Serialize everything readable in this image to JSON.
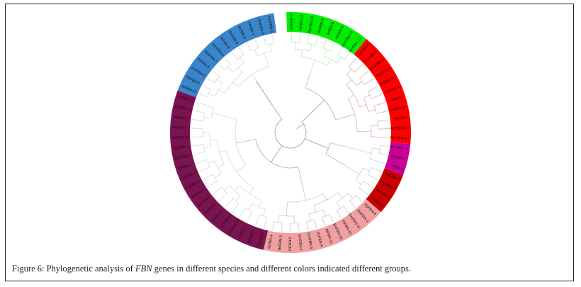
{
  "figure": {
    "label": "Figure 6:",
    "caption_pre": " Phylogenetic analysis of ",
    "caption_gene": "FBN",
    "caption_post": " genes in different species and different colors indicated different groups."
  },
  "tree": {
    "type": "circular-phylogenetic-tree",
    "groups": [
      {
        "name": "green",
        "color": "#00ee00",
        "labels": [
          "ZmFBN-4",
          "AtFBN-12",
          "PpFBN-10",
          "BnFBN-8",
          "AtFBN-8",
          "PtFBN-8",
          "GmFBN-14",
          "GmFBN-12"
        ]
      },
      {
        "name": "red",
        "color": "#ff0000",
        "labels": [
          "PpFBN-1",
          "ZmFBN-8",
          "GmFBN-3",
          "BnFBN-2",
          "PtFBN-10",
          "BnFBN-4",
          "AtFBN-7",
          "PtFBN-11",
          "PtFBN-7",
          "GmFBN-16",
          "GmFBN-13"
        ]
      },
      {
        "name": "magenta",
        "color": "#cc0099",
        "labels": [
          "BnFBN-10",
          "BnFBN-1",
          "PtFBN-6"
        ]
      },
      {
        "name": "dark-red",
        "color": "#cc0000",
        "labels": [
          "PpFBN-7",
          "PpFBN-2",
          "BnFBN-5",
          "AtFBN-5"
        ]
      },
      {
        "name": "pink",
        "color": "#f0a0a0",
        "labels": [
          "PpFBN-8",
          "ZmFBN-1",
          "GmFBN-11",
          "PtFBN-10",
          "BnFBN-10",
          "AtFBN-11",
          "PpFBN-4",
          "GmFBN-5",
          "GmFBN-4",
          "PtFBN-5",
          "BnFBN-3",
          "AtFBN-4"
        ]
      },
      {
        "name": "purple",
        "color": "#7a1450",
        "labels": [
          "PpFBN-3",
          "PtFBN-2",
          "PtFBN-1",
          "BnFBN-13",
          "GmFBN-2",
          "PtFBN-9",
          "PtFBN-3",
          "BnFBN-3",
          "AtFBN-3",
          "PpFBN-5",
          "GmFBN-3",
          "PtFBN-4",
          "GmFBN-2",
          "GmFBN-1",
          "BnFBN-11",
          "AtFBN-1",
          "AtFBN-2",
          "BnFBN-12",
          "BnFBN-7"
        ]
      },
      {
        "name": "blue",
        "color": "#3a86cc",
        "labels": [
          "AtFBN-13",
          "PpFBN-6",
          "ZmFBN-5",
          "PtFBN-4",
          "GmFBN-7",
          "GmFBN-6",
          "AtFBN-6",
          "BnFBN-9",
          "AtFBN-3",
          "PtFBN-7",
          "GmFBN-9",
          "GmFBN-8"
        ]
      }
    ]
  }
}
